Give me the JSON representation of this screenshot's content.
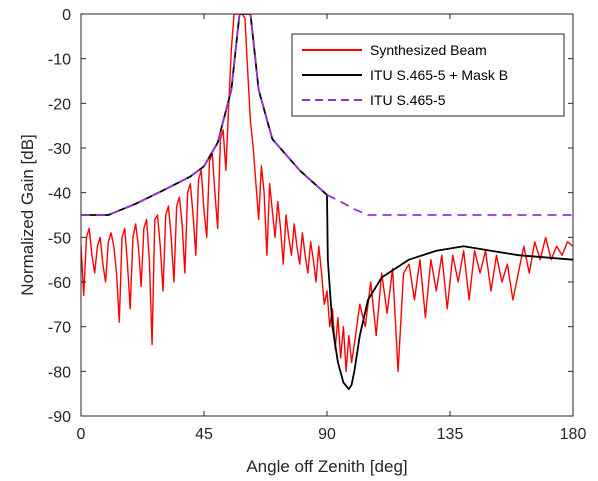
{
  "chart_data": {
    "type": "line",
    "title": "",
    "xlabel": "Angle off Zenith [deg]",
    "ylabel": "Normalized Gain [dB]",
    "xlim": [
      0,
      180
    ],
    "ylim": [
      -90,
      0
    ],
    "xticks": [
      0,
      45,
      90,
      135,
      180
    ],
    "yticks": [
      0,
      -10,
      -20,
      -30,
      -40,
      -50,
      -60,
      -70,
      -80,
      -90
    ],
    "grid": false,
    "legend_position": "top-right",
    "series": [
      {
        "name": "Synthesized Beam",
        "color": "#ff0000",
        "style": "solid",
        "x": [
          0,
          1,
          2,
          3,
          4,
          5,
          6,
          7,
          8,
          9,
          10,
          11,
          12,
          13,
          14,
          15,
          16,
          17,
          18,
          19,
          20,
          21,
          22,
          23,
          24,
          25,
          26,
          27,
          28,
          29,
          30,
          31,
          32,
          33,
          34,
          35,
          36,
          37,
          38,
          39,
          40,
          41,
          42,
          43,
          44,
          45,
          46,
          47,
          48,
          49,
          50,
          51,
          52,
          53,
          54,
          55,
          56,
          57,
          58,
          59,
          60,
          61,
          62,
          63,
          64,
          65,
          66,
          67,
          68,
          69,
          70,
          71,
          72,
          73,
          74,
          75,
          76,
          77,
          78,
          79,
          80,
          81,
          82,
          83,
          84,
          85,
          86,
          87,
          88,
          89,
          90,
          91,
          92,
          93,
          94,
          95,
          96,
          97,
          98,
          99,
          100,
          102,
          104,
          106,
          108,
          110,
          112,
          114,
          116,
          118,
          120,
          122,
          124,
          126,
          128,
          130,
          132,
          134,
          136,
          138,
          140,
          142,
          144,
          146,
          148,
          150,
          152,
          154,
          156,
          158,
          160,
          162,
          164,
          166,
          168,
          170,
          172,
          174,
          176,
          178,
          180
        ],
        "values": [
          -52,
          -63,
          -50,
          -48,
          -54,
          -58,
          -52,
          -50,
          -56,
          -60,
          -51,
          -49,
          -52,
          -58,
          -69,
          -50,
          -48,
          -56,
          -66,
          -50,
          -47,
          -52,
          -61,
          -48,
          -46,
          -55,
          -74,
          -46,
          -45,
          -52,
          -62,
          -45,
          -43,
          -50,
          -60,
          -43,
          -41,
          -47,
          -58,
          -40,
          -38,
          -45,
          -54,
          -37,
          -35,
          -44,
          -50,
          -33,
          -31,
          -40,
          -48,
          -28,
          -26,
          -35,
          -21,
          -8,
          0,
          0,
          0,
          0,
          -1,
          -13,
          -24,
          -30,
          -38,
          -46,
          -34,
          -40,
          -54,
          -38,
          -44,
          -50,
          -42,
          -48,
          -56,
          -45,
          -50,
          -54,
          -47,
          -52,
          -56,
          -49,
          -54,
          -58,
          -51,
          -55,
          -60,
          -52,
          -58,
          -65,
          -62,
          -70,
          -66,
          -75,
          -68,
          -77,
          -70,
          -80,
          -72,
          -78,
          -74,
          -65,
          -70,
          -60,
          -72,
          -58,
          -67,
          -57,
          -80,
          -58,
          -56,
          -64,
          -55,
          -68,
          -55,
          -62,
          -54,
          -66,
          -54,
          -60,
          -53,
          -64,
          -53,
          -58,
          -53,
          -62,
          -54,
          -60,
          -56,
          -64,
          -58,
          -52,
          -58,
          -51,
          -55,
          -50,
          -55,
          -52,
          -54,
          -51,
          -52
        ]
      },
      {
        "name": "ITU S.465-5 + Mask B",
        "color": "#000000",
        "style": "solid",
        "x": [
          0,
          10,
          20,
          30,
          40,
          45,
          50,
          55,
          58,
          62,
          65,
          70,
          80,
          90,
          90.3,
          92,
          94,
          96,
          98,
          99,
          100,
          102,
          105,
          110,
          120,
          130,
          140,
          150,
          160,
          170,
          180
        ],
        "values": [
          -45,
          -45,
          -42.5,
          -39.5,
          -36.4,
          -34.1,
          -28.8,
          -17,
          0,
          0,
          -17,
          -28,
          -35,
          -40.5,
          -55,
          -70,
          -78,
          -82.5,
          -84,
          -83,
          -80,
          -72,
          -64,
          -59,
          -55,
          -53,
          -52,
          -53,
          -54,
          -54.5,
          -55
        ]
      },
      {
        "name": "ITU S.465-5",
        "color": "#9b30d9",
        "style": "dashed",
        "x": [
          0,
          10,
          20,
          30,
          40,
          45,
          50,
          55,
          58,
          62,
          65,
          70,
          80,
          90,
          95,
          100,
          105,
          110,
          130,
          150,
          180
        ],
        "values": [
          -45,
          -45,
          -42.5,
          -39.5,
          -36.4,
          -34.1,
          -28.8,
          -17,
          0,
          0,
          -17,
          -28,
          -35,
          -40.5,
          -42,
          -43.7,
          -45,
          -45,
          -45,
          -45,
          -45
        ]
      }
    ]
  }
}
